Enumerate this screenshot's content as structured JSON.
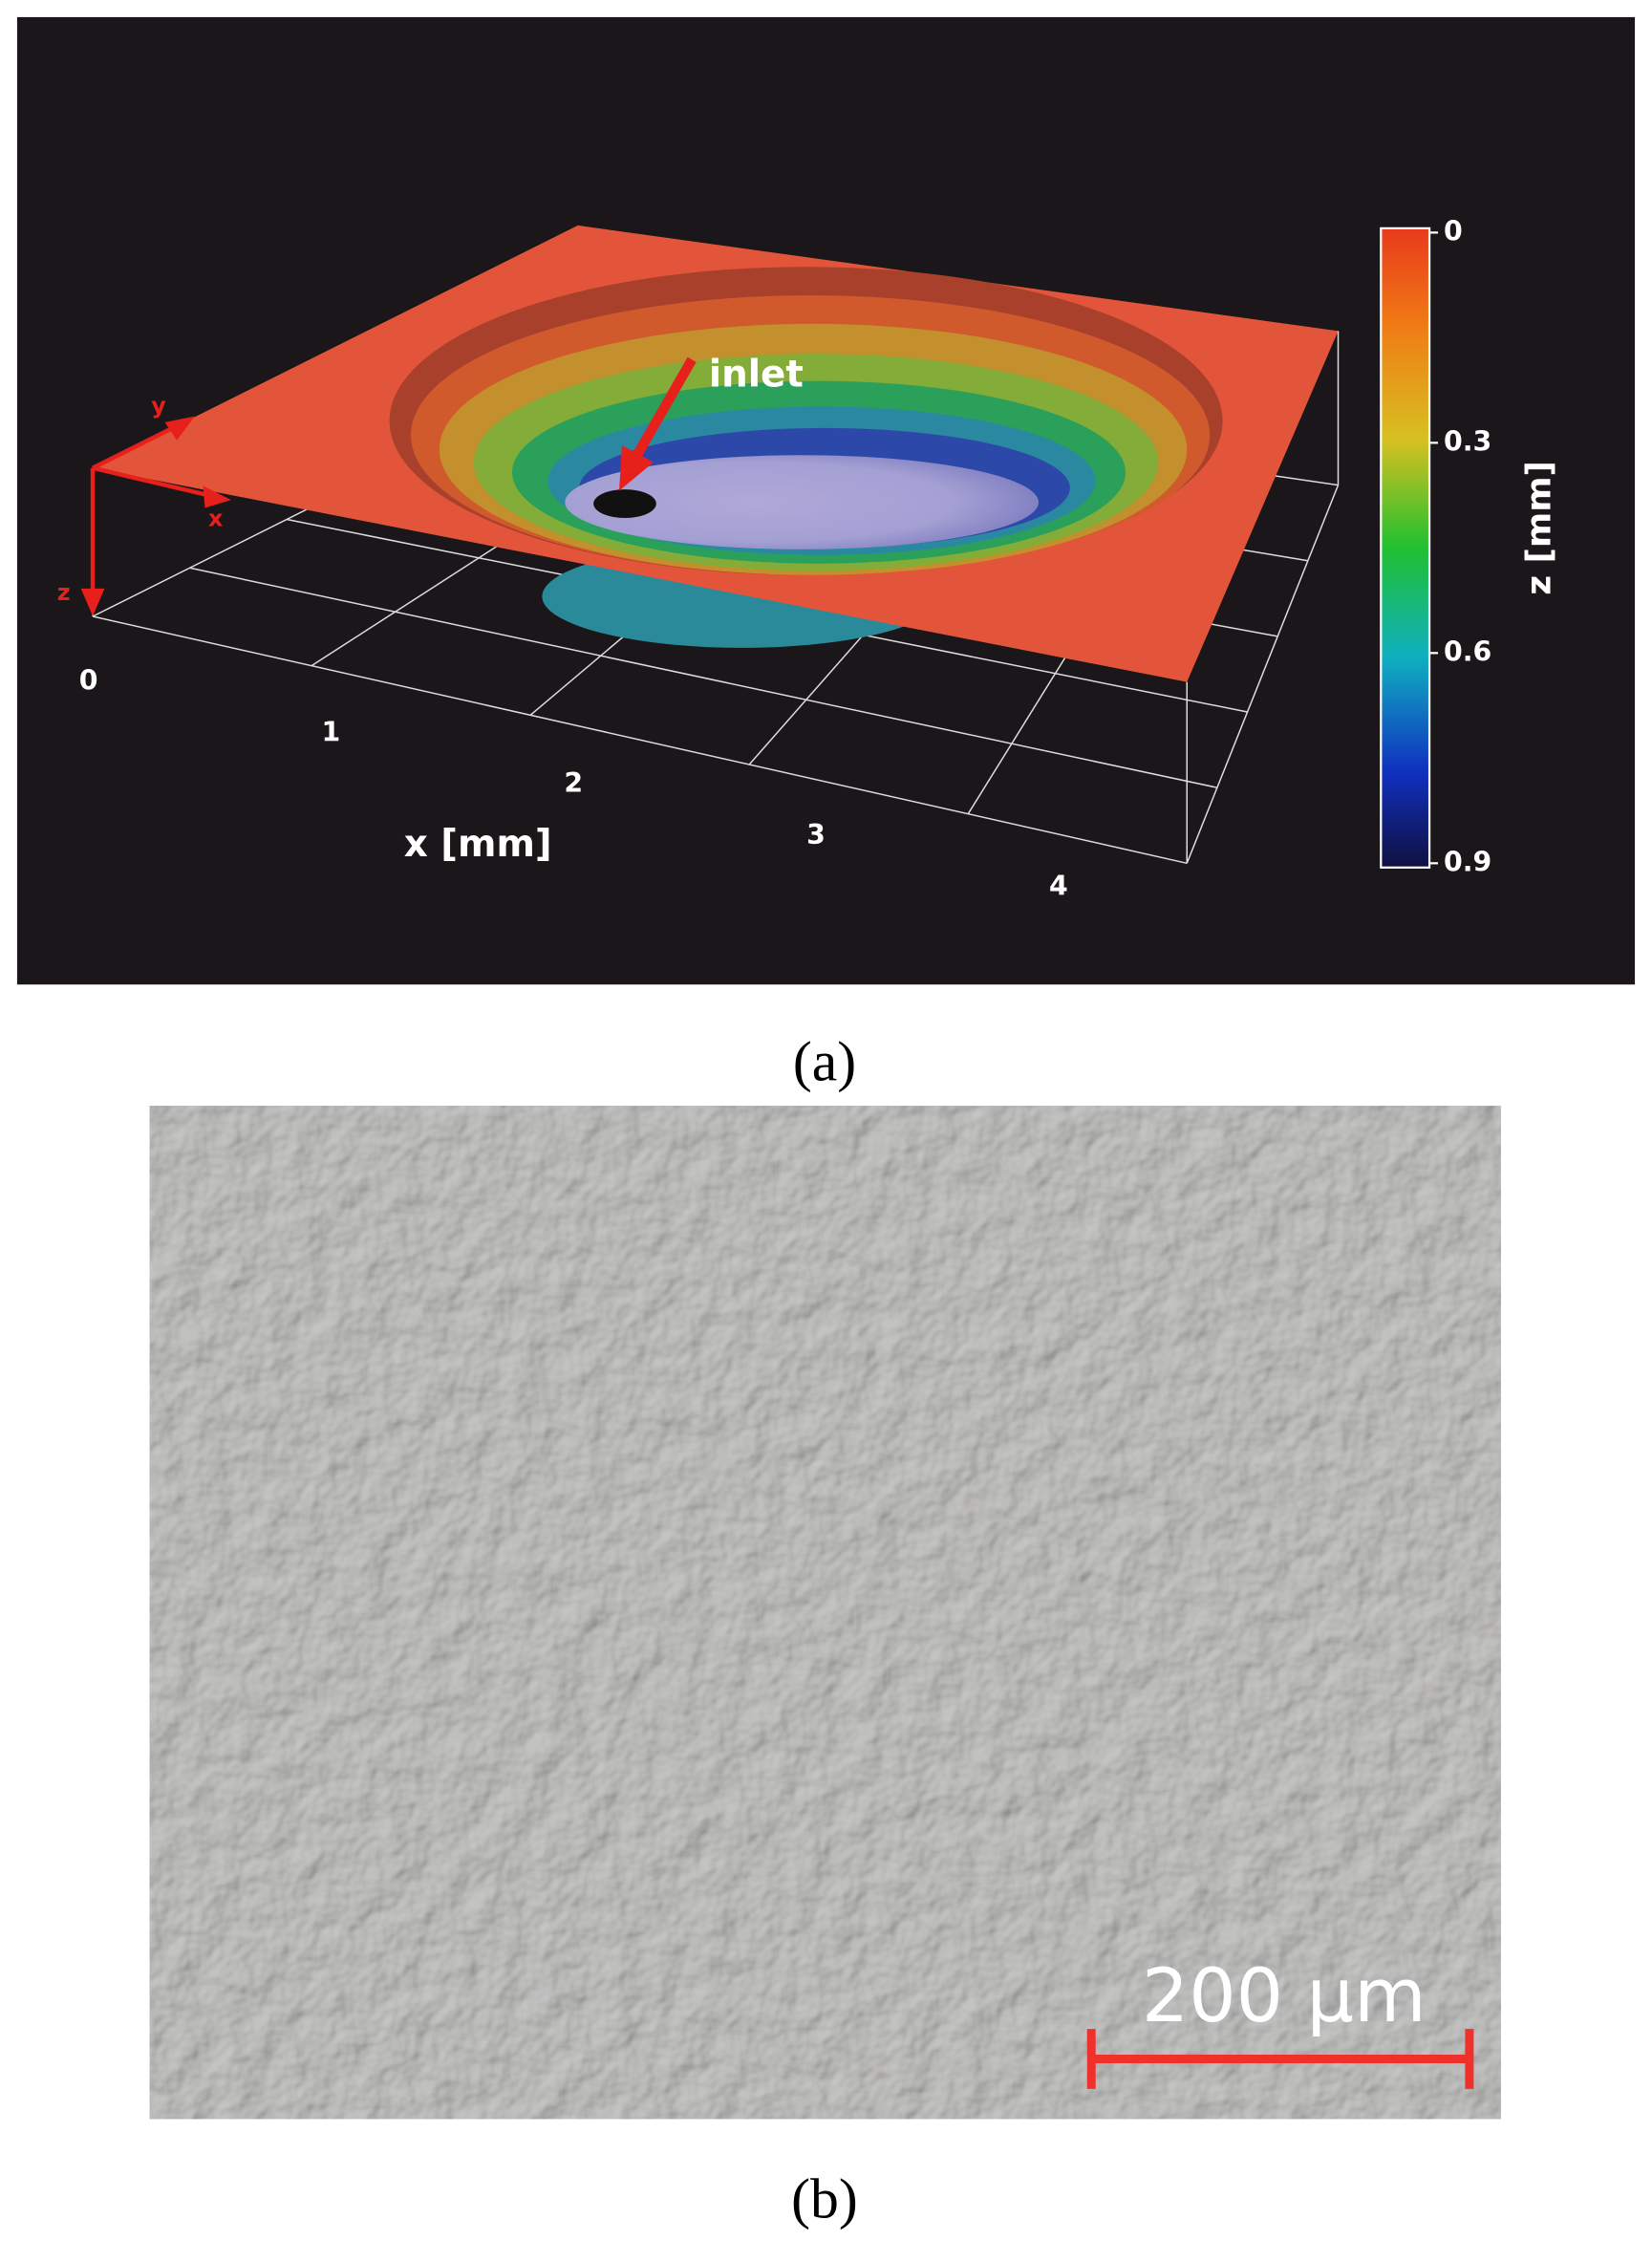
{
  "panel_a": {
    "label": "(a)",
    "annotation": "inlet",
    "x_axis": {
      "title": "x [mm]",
      "ticks": [
        0,
        1,
        2,
        3,
        4
      ]
    },
    "axis_letters": [
      "x",
      "y",
      "z"
    ],
    "colorbar": {
      "title": "z [mm]",
      "ticks": [
        0,
        0.3,
        0.6,
        0.9
      ]
    }
  },
  "panel_b": {
    "label": "(b)",
    "scale_bar": "200 µm"
  }
}
